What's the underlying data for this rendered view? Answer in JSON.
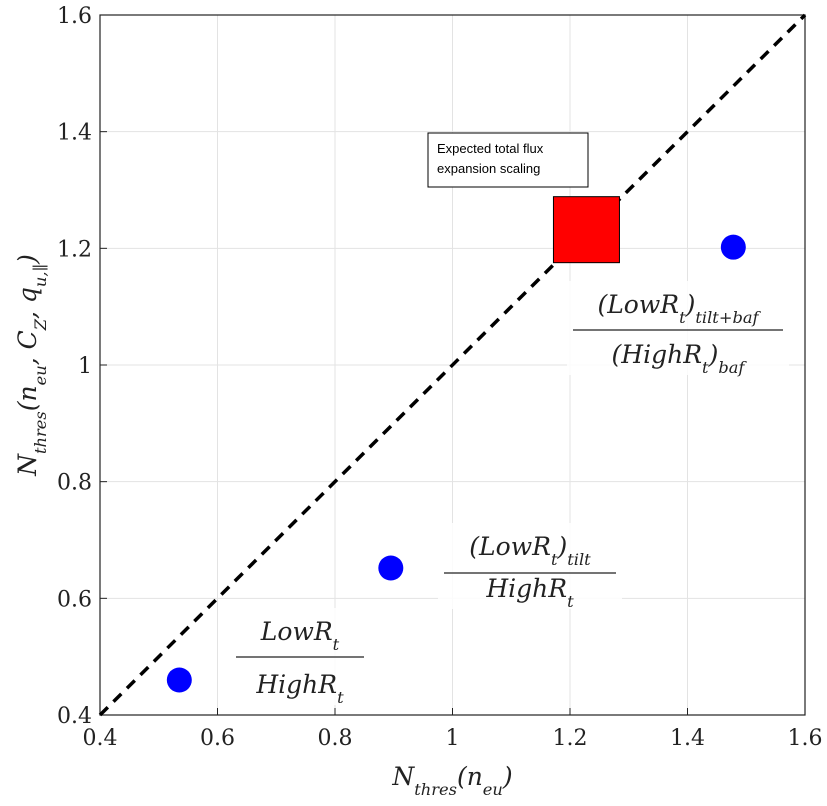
{
  "chart_data": {
    "type": "scatter",
    "xlabel": [
      {
        "text": "N"
      },
      {
        "text": "thres",
        "sub": true
      },
      {
        "text": "(n"
      },
      {
        "text": "eu",
        "sub": true
      },
      {
        "text": ")"
      }
    ],
    "ylabel": [
      {
        "text": "N"
      },
      {
        "text": "thres",
        "sub": true
      },
      {
        "text": "(n"
      },
      {
        "text": "eu",
        "sub": true
      },
      {
        "text": ", C"
      },
      {
        "text": "Z",
        "sub": true
      },
      {
        "text": ", q"
      },
      {
        "text": "u,∥",
        "sub": true
      },
      {
        "text": ")"
      }
    ],
    "xlim": [
      0.4,
      1.6
    ],
    "ylim": [
      0.4,
      1.6
    ],
    "xticks": [
      0.4,
      0.6,
      0.8,
      1,
      1.2,
      1.4,
      1.6
    ],
    "yticks": [
      0.4,
      0.6,
      0.8,
      1,
      1.2,
      1.4,
      1.6
    ],
    "grid": true,
    "series": [
      {
        "color": "#0000ff",
        "marker": "circle",
        "x": [
          0.535,
          0.895,
          1.478
        ],
        "values": [
          0.46,
          0.652,
          1.202
        ]
      },
      {
        "color": "#ff0000",
        "marker": "square",
        "x": [
          1.228
        ],
        "values": [
          1.232
        ]
      },
      {
        "color": "#000000",
        "marker": "dashed-line",
        "x": [
          0.4,
          1.6
        ],
        "values": [
          0.4,
          1.6
        ]
      }
    ],
    "annotations": [
      {
        "lines": [
          "Expected total flux",
          "expansion scaling"
        ]
      },
      {
        "numerator": [
          {
            "text": "LowR"
          },
          {
            "text": "t",
            "sub": true
          }
        ],
        "denominator": [
          {
            "text": "HighR"
          },
          {
            "text": "t",
            "sub": true
          }
        ]
      },
      {
        "numerator": [
          {
            "text": "(LowR"
          },
          {
            "text": "t",
            "sub": true
          },
          {
            "text": ")"
          },
          {
            "text": "tilt",
            "sub": true
          }
        ],
        "denominator": [
          {
            "text": "HighR"
          },
          {
            "text": "t",
            "sub": true
          }
        ]
      },
      {
        "numerator": [
          {
            "text": "(LowR"
          },
          {
            "text": "t",
            "sub": true
          },
          {
            "text": ")"
          },
          {
            "text": "tilt+baf",
            "sub": true
          }
        ],
        "denominator": [
          {
            "text": "(HighR"
          },
          {
            "text": "t",
            "sub": true
          },
          {
            "text": ")"
          },
          {
            "text": "baf",
            "sub": true
          }
        ]
      }
    ]
  }
}
